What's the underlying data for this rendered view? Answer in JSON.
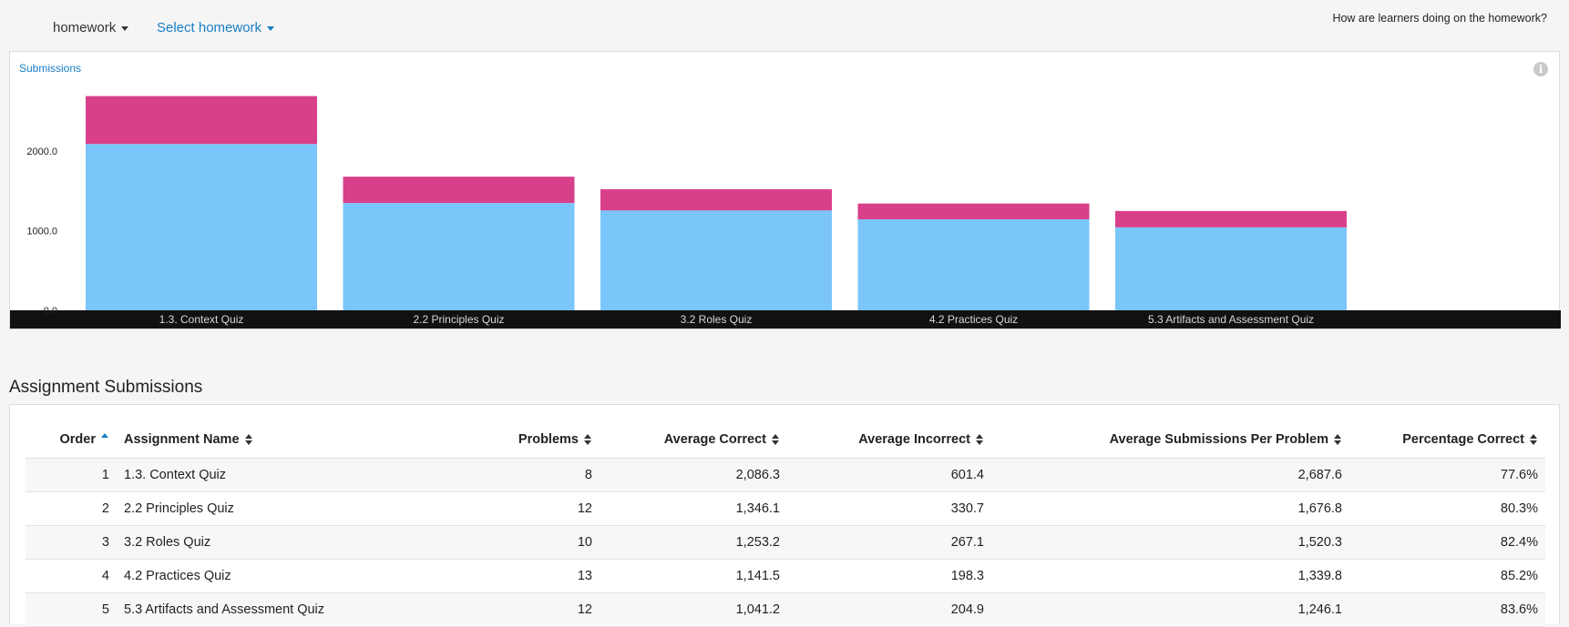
{
  "header": {
    "homework_dropdown": "homework",
    "select_dropdown": "Select homework",
    "question": "How are learners doing on the homework?"
  },
  "chart": {
    "title": "Submissions",
    "info_icon": "info-icon"
  },
  "colors": {
    "correct": "#7ac5fa",
    "incorrect": "#d9408a",
    "axis_band": "#111111",
    "accent": "#1a7ec5"
  },
  "chart_data": {
    "type": "bar",
    "stacked": true,
    "categories": [
      "1.3. Context Quiz",
      "2.2 Principles Quiz",
      "3.2 Roles Quiz",
      "4.2 Practices Quiz",
      "5.3 Artifacts and Assessment Quiz"
    ],
    "series": [
      {
        "name": "Average Correct",
        "values": [
          2086.3,
          1346.1,
          1253.2,
          1141.5,
          1041.2
        ]
      },
      {
        "name": "Average Incorrect",
        "values": [
          601.4,
          330.7,
          267.1,
          198.3,
          204.9
        ]
      }
    ],
    "y_ticks": [
      "0.0",
      "1000.0",
      "2000.0"
    ],
    "ylim": [
      0,
      2900
    ],
    "grid": false,
    "title": "Submissions"
  },
  "table": {
    "title": "Assignment Submissions",
    "columns": [
      "Order",
      "Assignment Name",
      "Problems",
      "Average Correct",
      "Average Incorrect",
      "Average Submissions Per Problem",
      "Percentage Correct"
    ],
    "rows": [
      [
        "1",
        "1.3. Context Quiz",
        "8",
        "2,086.3",
        "601.4",
        "2,687.6",
        "77.6%"
      ],
      [
        "2",
        "2.2 Principles Quiz",
        "12",
        "1,346.1",
        "330.7",
        "1,676.8",
        "80.3%"
      ],
      [
        "3",
        "3.2 Roles Quiz",
        "10",
        "1,253.2",
        "267.1",
        "1,520.3",
        "82.4%"
      ],
      [
        "4",
        "4.2 Practices Quiz",
        "13",
        "1,141.5",
        "198.3",
        "1,339.8",
        "85.2%"
      ],
      [
        "5",
        "5.3 Artifacts and Assessment Quiz",
        "12",
        "1,041.2",
        "204.9",
        "1,246.1",
        "83.6%"
      ]
    ]
  }
}
